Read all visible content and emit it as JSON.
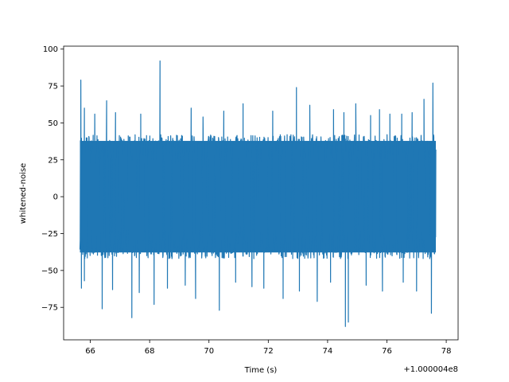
{
  "chart_data": {
    "type": "line",
    "title": "",
    "xlabel": "Time (s)",
    "ylabel": "whitened-noise",
    "x_offset_label": "+1.000004e8",
    "xlim": [
      65.1,
      78.4
    ],
    "ylim": [
      -97,
      102
    ],
    "x_ticks": [
      66,
      68,
      70,
      72,
      74,
      76,
      78
    ],
    "y_ticks": [
      100,
      75,
      50,
      25,
      0,
      -25,
      -50,
      -75
    ],
    "grid": false,
    "legend": "none",
    "series_color": "#1f77b4",
    "series": [
      {
        "x_range": [
          65.65,
          77.65
        ],
        "noise_band": [
          -42,
          42
        ],
        "peaks_max": [
          {
            "x": 65.68,
            "y": 79
          },
          {
            "x": 65.8,
            "y": 60
          },
          {
            "x": 66.15,
            "y": 56
          },
          {
            "x": 66.55,
            "y": 65
          },
          {
            "x": 66.85,
            "y": 57
          },
          {
            "x": 67.7,
            "y": 56
          },
          {
            "x": 68.35,
            "y": 92
          },
          {
            "x": 69.4,
            "y": 60
          },
          {
            "x": 69.8,
            "y": 54
          },
          {
            "x": 70.5,
            "y": 58
          },
          {
            "x": 71.15,
            "y": 63
          },
          {
            "x": 72.15,
            "y": 58
          },
          {
            "x": 72.95,
            "y": 74
          },
          {
            "x": 73.4,
            "y": 62
          },
          {
            "x": 74.2,
            "y": 59
          },
          {
            "x": 74.55,
            "y": 57
          },
          {
            "x": 74.95,
            "y": 63
          },
          {
            "x": 75.45,
            "y": 55
          },
          {
            "x": 75.75,
            "y": 59
          },
          {
            "x": 76.1,
            "y": 56
          },
          {
            "x": 76.5,
            "y": 56
          },
          {
            "x": 76.85,
            "y": 57
          },
          {
            "x": 77.25,
            "y": 66
          },
          {
            "x": 77.55,
            "y": 77
          }
        ],
        "peaks_min": [
          {
            "x": 65.7,
            "y": -62
          },
          {
            "x": 65.8,
            "y": -57
          },
          {
            "x": 66.4,
            "y": -76
          },
          {
            "x": 66.75,
            "y": -63
          },
          {
            "x": 67.4,
            "y": -82
          },
          {
            "x": 67.65,
            "y": -65
          },
          {
            "x": 68.15,
            "y": -73
          },
          {
            "x": 68.6,
            "y": -62
          },
          {
            "x": 69.2,
            "y": -60
          },
          {
            "x": 69.55,
            "y": -69
          },
          {
            "x": 70.35,
            "y": -77
          },
          {
            "x": 70.9,
            "y": -58
          },
          {
            "x": 71.45,
            "y": -61
          },
          {
            "x": 71.85,
            "y": -62
          },
          {
            "x": 72.5,
            "y": -69
          },
          {
            "x": 73.05,
            "y": -64
          },
          {
            "x": 73.65,
            "y": -71
          },
          {
            "x": 74.1,
            "y": -58
          },
          {
            "x": 74.6,
            "y": -88
          },
          {
            "x": 74.7,
            "y": -85
          },
          {
            "x": 75.3,
            "y": -60
          },
          {
            "x": 75.85,
            "y": -64
          },
          {
            "x": 76.55,
            "y": -58
          },
          {
            "x": 77.0,
            "y": -64
          },
          {
            "x": 77.5,
            "y": -79
          }
        ]
      }
    ]
  }
}
